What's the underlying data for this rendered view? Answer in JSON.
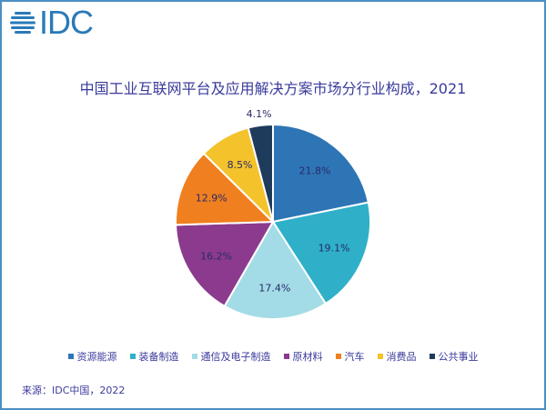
{
  "logo": {
    "text": "IDC",
    "color": "#2a7ab8"
  },
  "chart_data": {
    "type": "pie",
    "title": "中国工业互联网平台及应用解决方案市场分行业构成，2021",
    "categories": [
      "资源能源",
      "装备制造",
      "通信及电子制造",
      "原材料",
      "汽车",
      "消费品",
      "公共事业"
    ],
    "values": [
      21.8,
      19.1,
      17.4,
      16.2,
      12.9,
      8.5,
      4.1
    ],
    "labels": [
      "21.8%",
      "19.1%",
      "17.4%",
      "16.2%",
      "12.9%",
      "8.5%",
      "4.1%"
    ],
    "colors": [
      "#2e75b6",
      "#2fb0c8",
      "#a3dce6",
      "#8b3a8e",
      "#f07f1f",
      "#f4c22b",
      "#1f3b5c"
    ],
    "legend_position": "bottom"
  },
  "source": "来源：IDC中国，2022"
}
